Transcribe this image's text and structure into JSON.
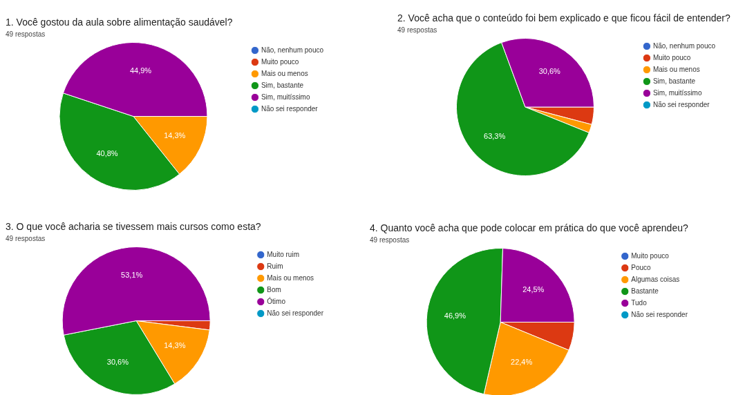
{
  "chart_data": [
    {
      "type": "pie",
      "title": "1. Você gostou da aula sobre alimentação saudável?",
      "subtitle": "49 respostas",
      "categories": [
        "Não, nenhum pouco",
        "Muito pouco",
        "Mais ou menos",
        "Sim, bastante",
        "Sim, muitíssimo",
        "Não sei responder"
      ],
      "values": [
        0,
        0,
        14.3,
        40.8,
        44.9,
        0
      ],
      "value_labels": [
        null,
        null,
        "14,3%",
        "40,8%",
        "44,9%",
        null
      ],
      "colors": [
        "#3366cc",
        "#dc3912",
        "#ff9900",
        "#109618",
        "#990099",
        "#0099c6"
      ],
      "legend": "right"
    },
    {
      "type": "pie",
      "title": "2. Você acha que o conteúdo foi bem explicado e que ficou fácil de entender?",
      "subtitle": "49 respostas",
      "categories": [
        "Não, nenhum pouco",
        "Muito pouco",
        "Mais ou menos",
        "Sim, bastante",
        "Sim, muitíssimo",
        "Não sei responder"
      ],
      "values": [
        0,
        4.1,
        2.0,
        63.3,
        30.6,
        0
      ],
      "value_labels": [
        null,
        null,
        null,
        "63,3%",
        "30,6%",
        null
      ],
      "colors": [
        "#3366cc",
        "#dc3912",
        "#ff9900",
        "#109618",
        "#990099",
        "#0099c6"
      ],
      "legend": "right"
    },
    {
      "type": "pie",
      "title": "3. O que você acharia se tivessem mais cursos como esta?",
      "subtitle": "49 respostas",
      "categories": [
        "Muito ruim",
        "Ruim",
        "Mais ou menos",
        "Bom",
        "Ótimo",
        "Não sei responder"
      ],
      "values": [
        0,
        2.0,
        14.3,
        30.6,
        53.1,
        0
      ],
      "value_labels": [
        null,
        null,
        "14,3%",
        "30,6%",
        "53,1%",
        null
      ],
      "colors": [
        "#3366cc",
        "#dc3912",
        "#ff9900",
        "#109618",
        "#990099",
        "#0099c6"
      ],
      "legend": "right"
    },
    {
      "type": "pie",
      "title": "4. Quanto você acha que pode colocar em prática do que você aprendeu?",
      "subtitle": "49 respostas",
      "categories": [
        "Muito pouco",
        "Pouco",
        "Algumas coisas",
        "Bastante",
        "Tudo",
        "Não sei responder"
      ],
      "values": [
        0,
        6.2,
        22.4,
        46.9,
        24.5,
        0
      ],
      "value_labels": [
        null,
        null,
        "22,4%",
        "46,9%",
        "24,5%",
        null
      ],
      "colors": [
        "#3366cc",
        "#dc3912",
        "#ff9900",
        "#109618",
        "#990099",
        "#0099c6"
      ],
      "legend": "right"
    }
  ]
}
